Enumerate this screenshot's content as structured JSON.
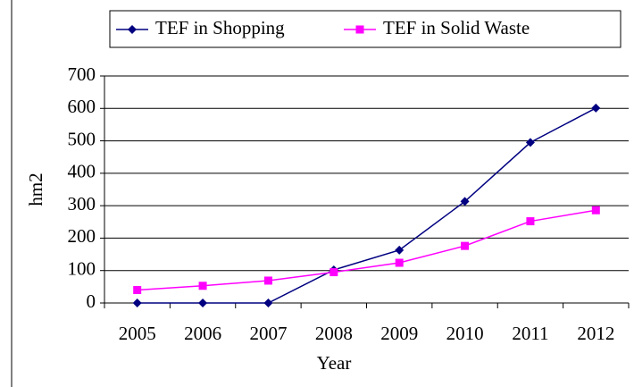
{
  "chart_data": {
    "type": "line",
    "x_label": "Year",
    "y_label": "hm2",
    "categories": [
      "2005",
      "2006",
      "2007",
      "2008",
      "2009",
      "2010",
      "2011",
      "2012"
    ],
    "series": [
      {
        "name": "TEF in Shopping",
        "color": "#000080",
        "marker": "diamond",
        "values": [
          0,
          0,
          0,
          102,
          163,
          313,
          495,
          601
        ]
      },
      {
        "name": "TEF in Solid Waste",
        "color": "#ff00ff",
        "marker": "square",
        "values": [
          40,
          53,
          69,
          95,
          124,
          176,
          252,
          286
        ]
      }
    ],
    "ylim": [
      0,
      700
    ],
    "yticks": [
      0,
      100,
      200,
      300,
      400,
      500,
      600,
      700
    ],
    "grid": true
  }
}
